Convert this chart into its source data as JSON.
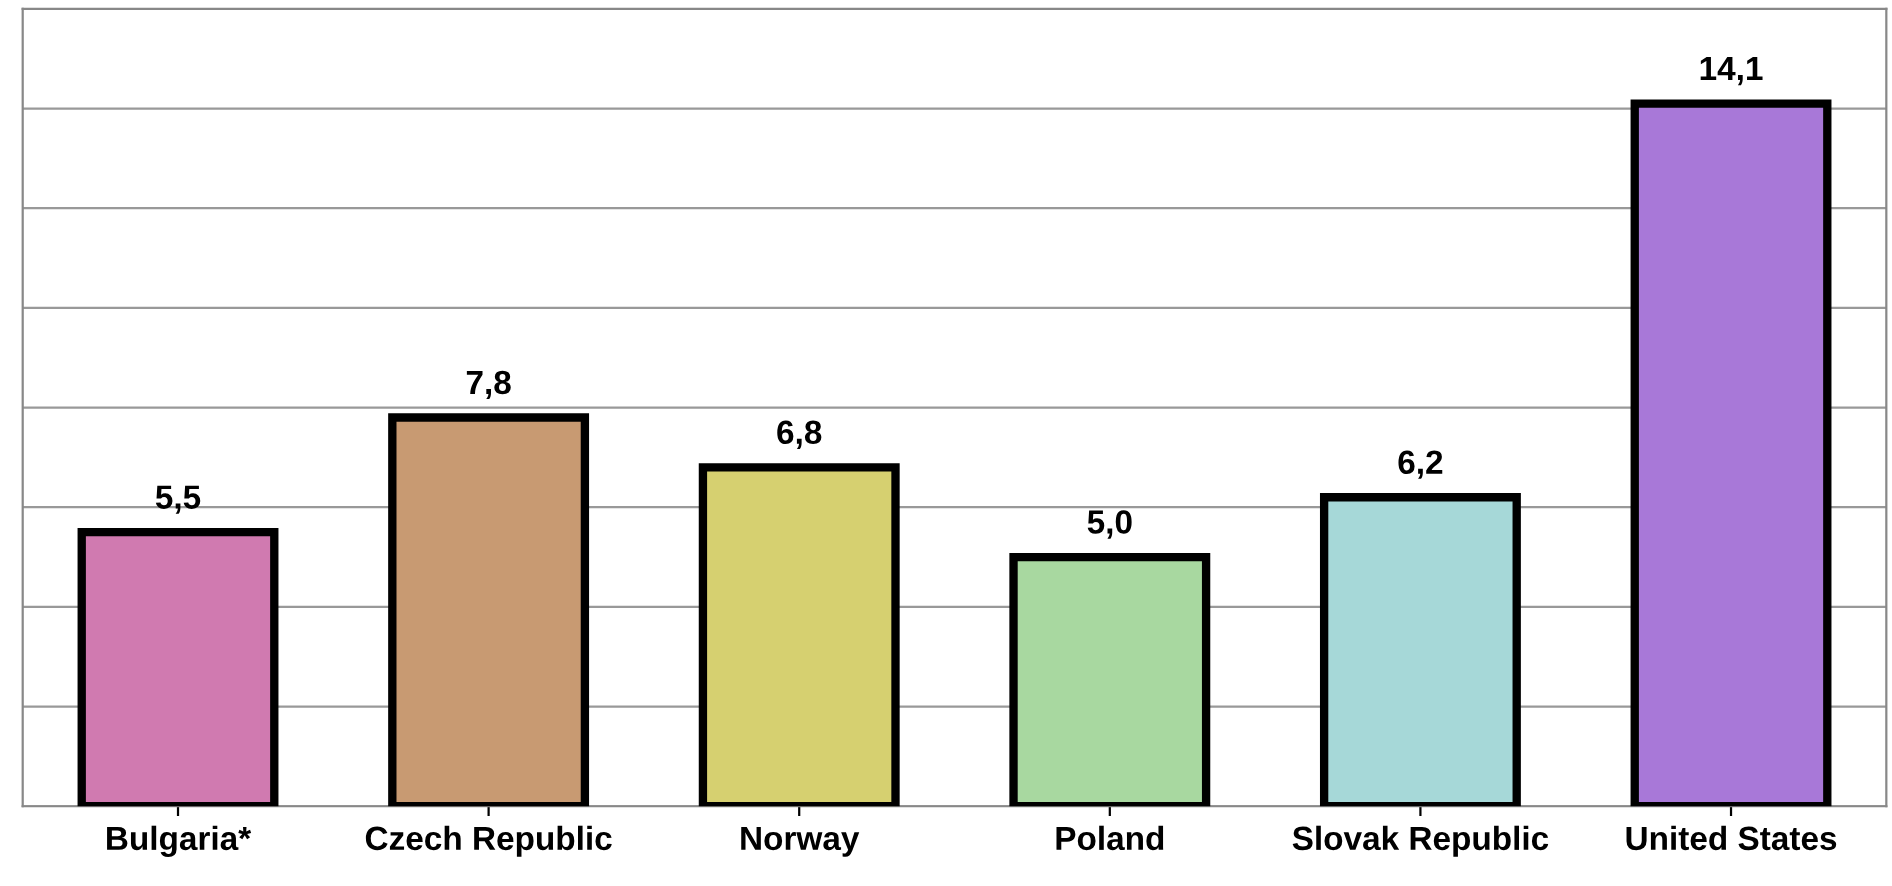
{
  "chart_data": {
    "type": "bar",
    "categories": [
      "Bulgaria*",
      "Czech Republic",
      "Norway",
      "Poland",
      "Slovak Republic",
      "United States"
    ],
    "values": [
      5.5,
      7.8,
      6.8,
      5.0,
      6.2,
      14.1
    ],
    "value_labels": [
      "5,5",
      "7,8",
      "6,8",
      "5,0",
      "6,2",
      "14,1"
    ],
    "colors": [
      "#d07ab0",
      "#c89a72",
      "#d6d070",
      "#a8d8a0",
      "#a6d8d8",
      "#a878d8"
    ],
    "ylim": [
      0,
      16
    ],
    "yticks": [
      {
        "value": 0,
        "label": null
      },
      {
        "value": 2,
        "label": null
      },
      {
        "value": 4,
        "label": null
      },
      {
        "value": 6,
        "label": null
      },
      {
        "value": 8,
        "label": null
      },
      {
        "value": 10,
        "label": null
      },
      {
        "value": 12,
        "label": null
      },
      {
        "value": 14,
        "label": null
      },
      {
        "value": 16,
        "label": null
      }
    ],
    "grid": "y",
    "tick_labels": "x"
  }
}
